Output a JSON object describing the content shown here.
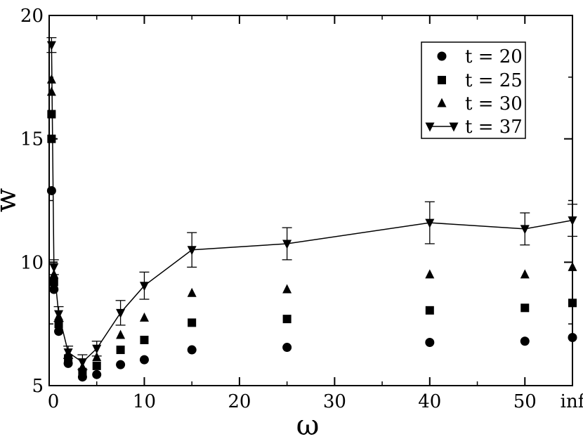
{
  "chart_data": {
    "type": "scatter",
    "xlabel": "ω",
    "ylabel": "w",
    "xlim": [
      0,
      55
    ],
    "ylim": [
      5,
      20
    ],
    "x_ticks": [
      {
        "value": 0,
        "label": "0"
      },
      {
        "value": 10,
        "label": "10"
      },
      {
        "value": 20,
        "label": "20"
      },
      {
        "value": 30,
        "label": "30"
      },
      {
        "value": 40,
        "label": "40"
      },
      {
        "value": 50,
        "label": "50"
      },
      {
        "value": 55,
        "label": "inf"
      }
    ],
    "y_ticks": [
      {
        "value": 5,
        "label": "5"
      },
      {
        "value": 10,
        "label": "10"
      },
      {
        "value": 15,
        "label": "15"
      },
      {
        "value": 20,
        "label": "20"
      }
    ],
    "legend_position": "top-right",
    "series": [
      {
        "name": "t = 20",
        "marker": "circle",
        "line": false,
        "x": [
          0.25,
          0.5,
          1,
          2,
          3.5,
          5,
          7.5,
          10,
          15,
          25,
          40,
          50,
          55
        ],
        "y": [
          12.9,
          8.9,
          7.2,
          5.9,
          5.35,
          5.45,
          5.85,
          6.05,
          6.45,
          6.55,
          6.75,
          6.8,
          6.95
        ]
      },
      {
        "name": "t = 25",
        "marker": "square",
        "line": false,
        "x": [
          0.25,
          0.25,
          0.5,
          1,
          2,
          3.5,
          5,
          7.5,
          10,
          15,
          25,
          40,
          50,
          55
        ],
        "y": [
          16.0,
          15.0,
          9.2,
          7.5,
          6.1,
          5.55,
          5.8,
          6.45,
          6.85,
          7.55,
          7.7,
          8.05,
          8.15,
          8.35
        ]
      },
      {
        "name": "t = 30",
        "marker": "triangle-up",
        "line": false,
        "x": [
          0.25,
          0.25,
          0.5,
          1,
          2,
          3.5,
          5,
          7.5,
          10,
          15,
          25,
          40,
          50,
          55
        ],
        "y": [
          17.4,
          16.9,
          9.5,
          7.8,
          6.3,
          5.75,
          6.15,
          7.05,
          7.75,
          8.75,
          8.9,
          9.5,
          9.5,
          9.8
        ]
      },
      {
        "name": "t = 37",
        "marker": "triangle-down",
        "line": true,
        "x": [
          0.25,
          0.5,
          1,
          2,
          3.5,
          5,
          7.5,
          10,
          15,
          25,
          40,
          50,
          55
        ],
        "y": [
          18.8,
          9.8,
          7.9,
          6.35,
          5.95,
          6.5,
          7.95,
          9.05,
          10.5,
          10.75,
          11.6,
          11.35,
          11.7
        ],
        "err": [
          0.3,
          0.3,
          0.3,
          0.25,
          0.3,
          0.3,
          0.5,
          0.55,
          0.7,
          0.65,
          0.85,
          0.65,
          0.65
        ]
      }
    ]
  }
}
